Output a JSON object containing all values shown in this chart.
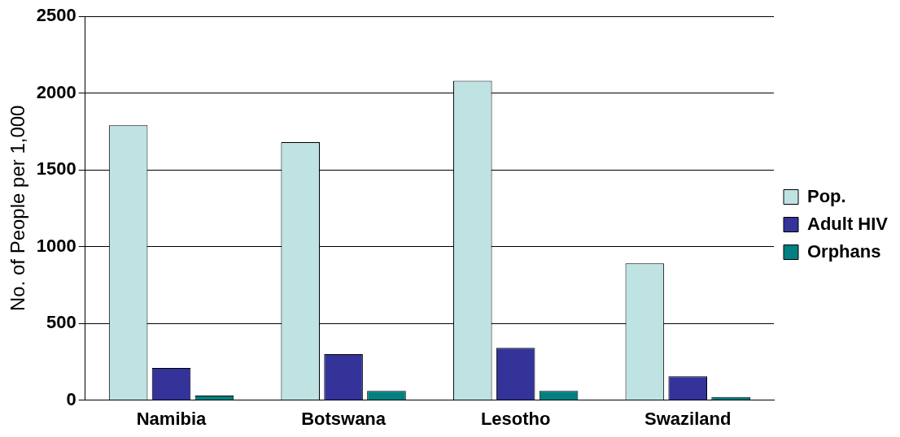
{
  "chart_data": {
    "type": "bar",
    "ylabel": "No. of People per 1,000",
    "categories": [
      "Namibia",
      "Botswana",
      "Lesotho",
      "Swaziland"
    ],
    "series": [
      {
        "name": "Pop.",
        "color": "#bfe3e3",
        "values": [
          1790,
          1680,
          2080,
          890
        ]
      },
      {
        "name": "Adult HIV",
        "color": "#333399",
        "values": [
          210,
          300,
          340,
          155
        ]
      },
      {
        "name": "Orphans",
        "color": "#008080",
        "values": [
          30,
          60,
          60,
          20
        ]
      }
    ],
    "ylim": [
      0,
      2500
    ],
    "yticks": [
      0,
      500,
      1000,
      1500,
      2000,
      2500
    ],
    "grid": "y",
    "legend": "right"
  }
}
